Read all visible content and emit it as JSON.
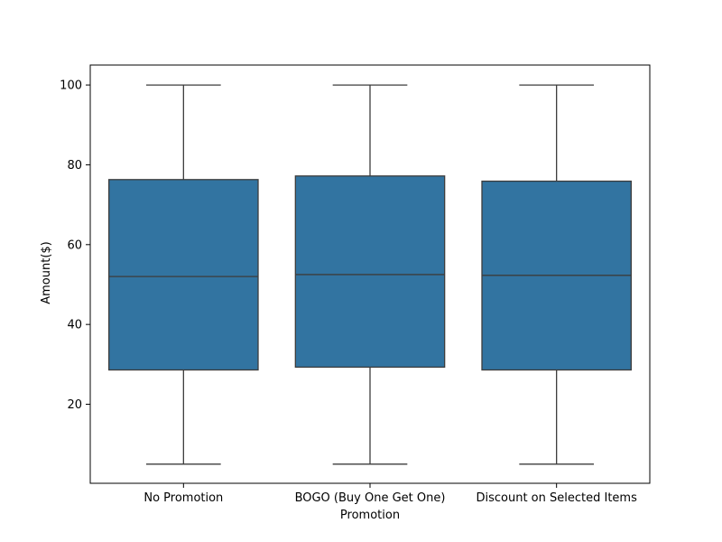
{
  "chart_data": {
    "type": "box",
    "title": "",
    "xlabel": "Promotion",
    "ylabel": "Amount($)",
    "ylim": [
      0.2,
      105
    ],
    "yticks": [
      20,
      40,
      60,
      80,
      100
    ],
    "grid": false,
    "legend": "none",
    "box_color": "#3274a1",
    "line_color": "#3c3c3c",
    "categories": [
      "No Promotion",
      "BOGO (Buy One Get One)",
      "Discount on Selected Items"
    ],
    "boxes": [
      {
        "category": "No Promotion",
        "min": 5,
        "q1": 28.6,
        "median": 52.0,
        "q3": 76.3,
        "max": 100
      },
      {
        "category": "BOGO (Buy One Get One)",
        "min": 5,
        "q1": 29.3,
        "median": 52.5,
        "q3": 77.2,
        "max": 100
      },
      {
        "category": "Discount on Selected Items",
        "min": 5,
        "q1": 28.6,
        "median": 52.3,
        "q3": 75.9,
        "max": 100
      }
    ]
  }
}
